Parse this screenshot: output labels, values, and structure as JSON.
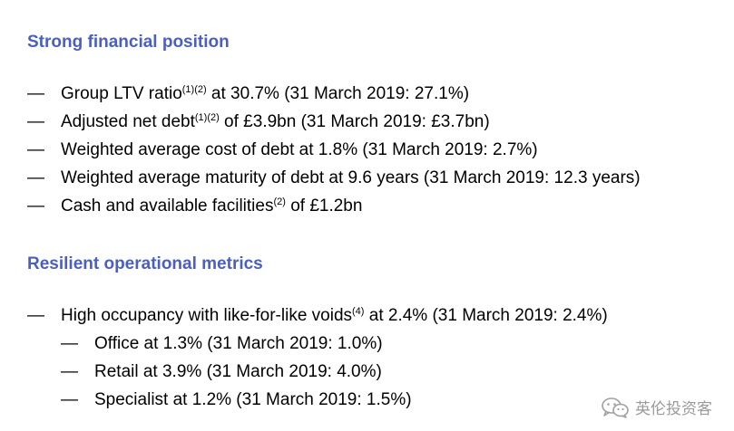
{
  "sections": [
    {
      "heading": "Strong financial position",
      "items": [
        {
          "dash": "—",
          "pre": "Group LTV ratio",
          "sup": "(1)(2)",
          "post": " at 30.7% (31 March 2019: 27.1%)"
        },
        {
          "dash": "—",
          "pre": "Adjusted net debt",
          "sup": "(1)(2)",
          "post": " of £3.9bn (31 March 2019: £3.7bn)"
        },
        {
          "dash": "—",
          "pre": "Weighted average cost of debt at 1.8% (31 March 2019: 2.7%)",
          "sup": "",
          "post": ""
        },
        {
          "dash": "—",
          "pre": "Weighted average maturity of debt at 9.6 years (31 March 2019: 12.3 years)",
          "sup": "",
          "post": ""
        },
        {
          "dash": "—",
          "pre": "Cash and available facilities",
          "sup": "(2)",
          "post": " of £1.2bn"
        }
      ]
    },
    {
      "heading": "Resilient operational metrics",
      "items": [
        {
          "dash": "—",
          "pre": "High occupancy with like-for-like voids",
          "sup": "(4)",
          "post": " at 2.4% (31 March 2019: 2.4%)"
        }
      ],
      "subitems": [
        {
          "dash": "—",
          "text": "Office at 1.3% (31 March 2019: 1.0%)"
        },
        {
          "dash": "—",
          "text": "Retail at 3.9% (31 March 2019: 4.0%)"
        },
        {
          "dash": "—",
          "text": "Specialist at 1.2% (31 March 2019: 1.5%)"
        }
      ]
    }
  ],
  "watermark": {
    "icon": "wechat-icon",
    "text": "英伦投资客"
  }
}
